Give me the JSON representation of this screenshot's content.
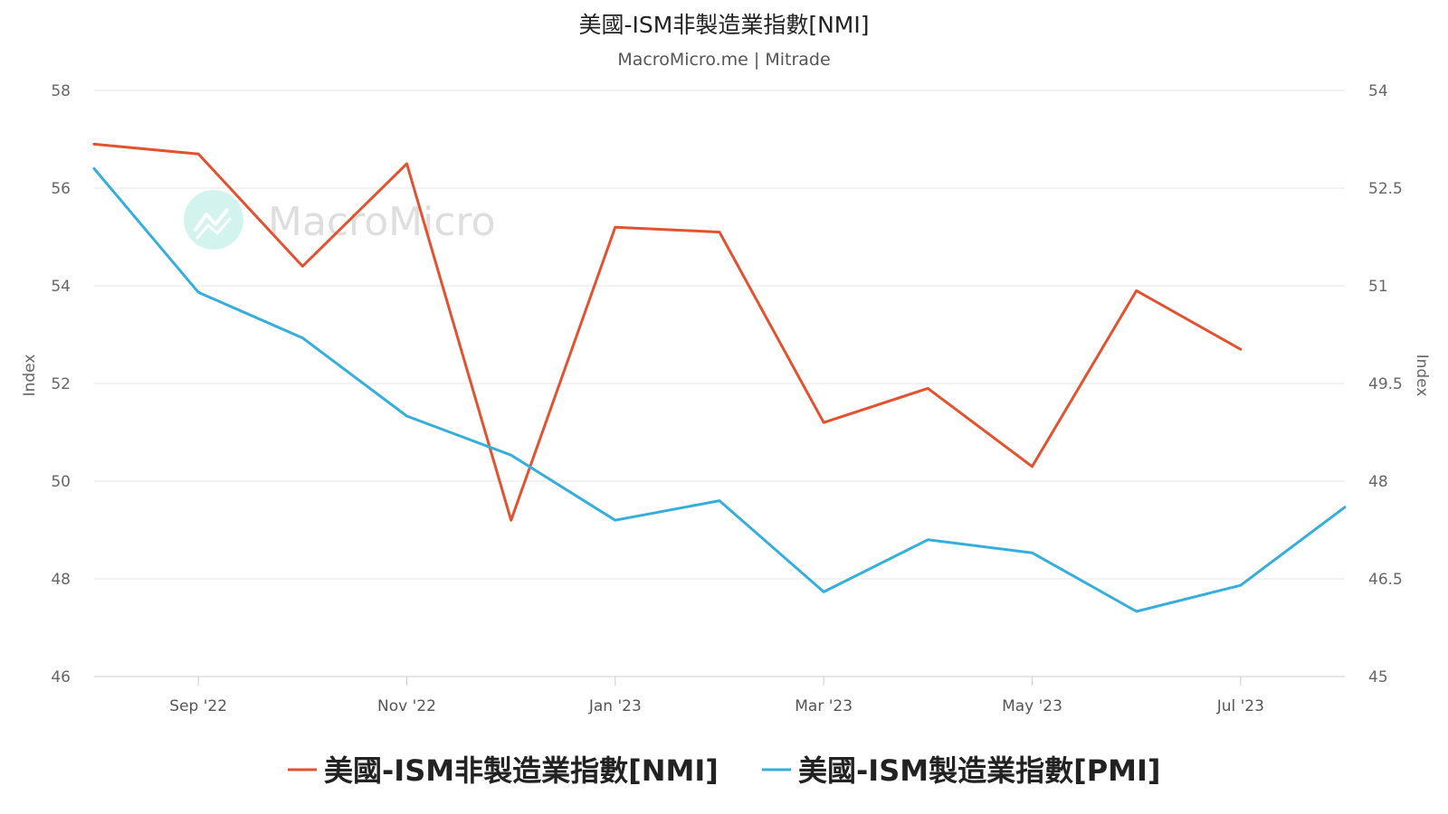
{
  "chart_data": {
    "type": "line",
    "title": "美國-ISM非製造業指數[NMI]",
    "subtitle": "MacroMicro.me | Mitrade",
    "watermark": "MacroMicro",
    "x_tick_labels": [
      "Sep '22",
      "Nov '22",
      "Jan '23",
      "Mar '23",
      "May '23",
      "Jul '23"
    ],
    "x": [
      "2022-08",
      "2022-09",
      "2022-10",
      "2022-11",
      "2022-12",
      "2023-01",
      "2023-02",
      "2023-03",
      "2023-04",
      "2023-05",
      "2023-06",
      "2023-07",
      "2023-08"
    ],
    "left_axis": {
      "label": "Index",
      "range": [
        46,
        58
      ],
      "ticks": [
        "46",
        "48",
        "50",
        "52",
        "54",
        "56",
        "58"
      ]
    },
    "right_axis": {
      "label": "Index",
      "range": [
        45,
        54
      ],
      "ticks": [
        "45",
        "46.5",
        "48",
        "49.5",
        "51",
        "52.5",
        "54"
      ]
    },
    "series": [
      {
        "name": "美國-ISM非製造業指數[NMI]",
        "axis": "left",
        "color": "#e4512f",
        "values": [
          56.9,
          56.7,
          54.4,
          56.5,
          49.2,
          55.2,
          55.1,
          51.2,
          51.9,
          50.3,
          53.9,
          52.7,
          null
        ]
      },
      {
        "name": "美國-ISM製造業指數[PMI]",
        "axis": "right",
        "color": "#36aedc",
        "values": [
          52.8,
          50.9,
          50.2,
          49.0,
          48.4,
          47.4,
          47.7,
          46.3,
          47.1,
          46.9,
          46.0,
          46.4,
          47.6
        ]
      }
    ],
    "grid": true,
    "legend_position": "bottom"
  }
}
